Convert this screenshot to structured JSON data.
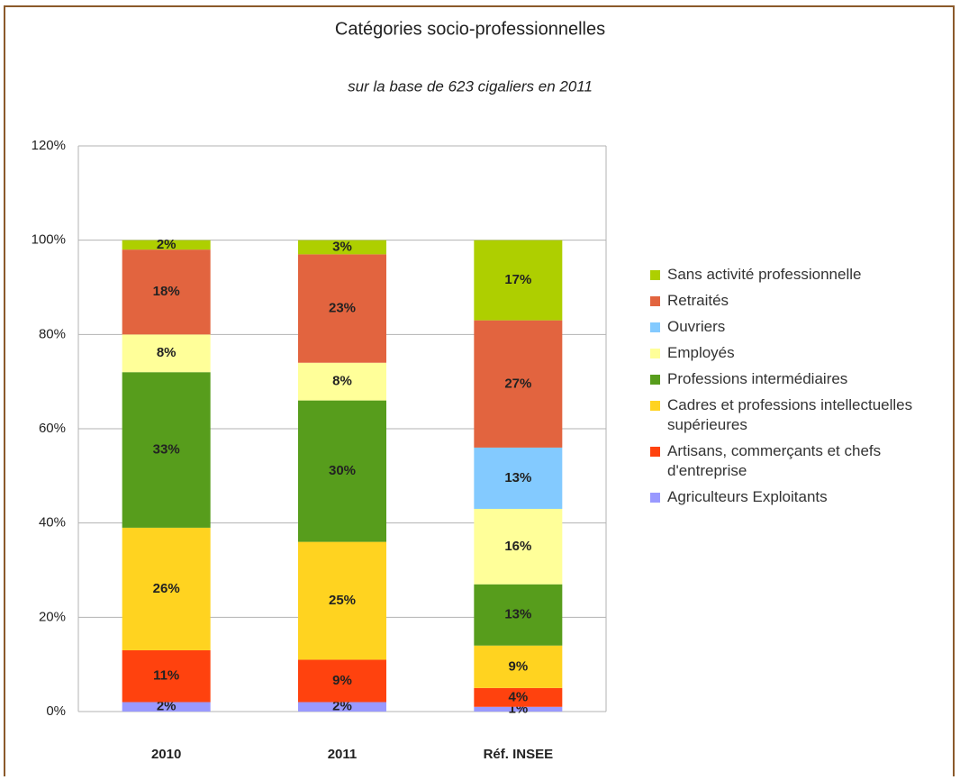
{
  "chart_data": {
    "type": "stacked_bar",
    "title": "Catégories socio-professionnelles",
    "subtitle": "sur la base de 623 cigaliers en 2011",
    "categories": [
      "2010",
      "2011",
      "Réf. INSEE"
    ],
    "series": [
      {
        "name": "Agriculteurs Exploitants",
        "color": "#9999ff",
        "values": [
          2,
          2,
          1
        ],
        "value_labels": [
          "2%",
          "2%",
          "1%"
        ]
      },
      {
        "name": "Artisans, commerçants et chefs d'entreprise",
        "color": "#ff420e",
        "values": [
          11,
          9,
          4
        ],
        "value_labels": [
          "11%",
          "9%",
          "4%"
        ]
      },
      {
        "name": "Cadres et professions intellectuelles supérieures",
        "color": "#ffd320",
        "values": [
          26,
          25,
          9
        ],
        "value_labels": [
          "26%",
          "25%",
          "9%"
        ]
      },
      {
        "name": "Professions intermédiaires",
        "color": "#579d1c",
        "values": [
          33,
          30,
          13
        ],
        "value_labels": [
          "33%",
          "30%",
          "13%"
        ]
      },
      {
        "name": "Employés",
        "color": "#ffff99",
        "values": [
          8,
          8,
          16
        ],
        "value_labels": [
          "8%",
          "8%",
          "16%"
        ]
      },
      {
        "name": "Ouvriers",
        "color": "#83caff",
        "values": [
          null,
          null,
          13
        ],
        "value_labels": [
          null,
          null,
          "13%"
        ]
      },
      {
        "name": "Retraités",
        "color": "#e2643f",
        "values": [
          18,
          23,
          27
        ],
        "value_labels": [
          "18%",
          "23%",
          "27%"
        ]
      },
      {
        "name": "Sans activité professionnelle",
        "color": "#aecf00",
        "values": [
          2,
          3,
          17
        ],
        "value_labels": [
          "2%",
          "3%",
          "17%"
        ]
      }
    ],
    "ylim": [
      0,
      120
    ],
    "yticks": [
      {
        "value": 0,
        "label": "0%"
      },
      {
        "value": 20,
        "label": "20%"
      },
      {
        "value": 40,
        "label": "40%"
      },
      {
        "value": 60,
        "label": "60%"
      },
      {
        "value": 80,
        "label": "80%"
      },
      {
        "value": 100,
        "label": "100%"
      },
      {
        "value": 120,
        "label": "120%"
      }
    ],
    "grid": true,
    "legend": "right"
  }
}
